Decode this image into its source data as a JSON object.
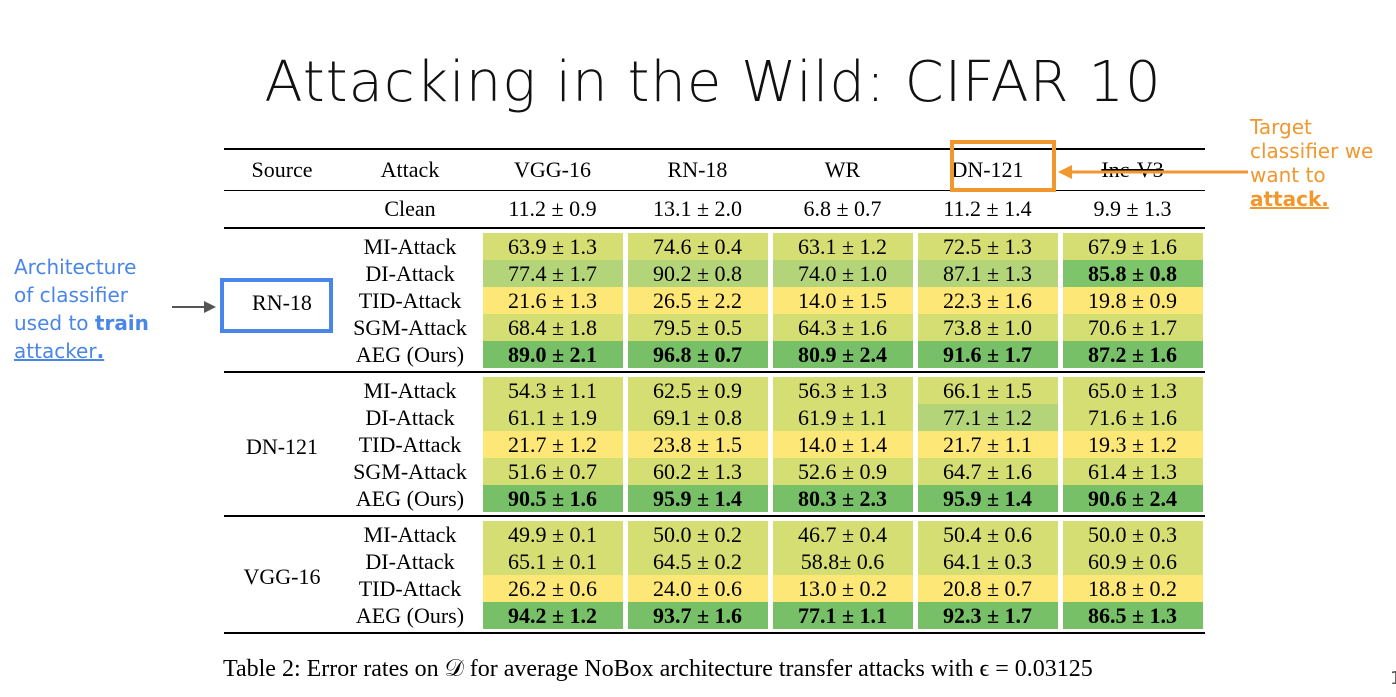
{
  "slide": {
    "title": "Attacking in the Wild: CIFAR 10",
    "page_number": "1"
  },
  "table": {
    "headers": [
      "Source",
      "Attack",
      "VGG-16",
      "RN-18",
      "WR",
      "DN-121",
      "Inc-V3"
    ],
    "clean": {
      "label": "Clean",
      "values": [
        "11.2 ± 0.9",
        "13.1 ± 2.0",
        "6.8 ± 0.7",
        "11.2 ± 1.4",
        "9.9 ± 1.3"
      ]
    },
    "groups": [
      {
        "source": "RN-18",
        "rows": [
          {
            "attack": "MI-Attack",
            "values": [
              "63.9 ± 1.3",
              "74.6 ± 0.4",
              "63.1 ± 1.2",
              "72.5 ± 1.3",
              "67.9 ± 1.6"
            ]
          },
          {
            "attack": "DI-Attack",
            "values": [
              "77.4 ± 1.7",
              "90.2 ± 0.8",
              "74.0 ± 1.0",
              "87.1 ± 1.3",
              "85.8 ± 0.8"
            ]
          },
          {
            "attack": "TID-Attack",
            "values": [
              "21.6 ± 1.3",
              "26.5 ± 2.2",
              "14.0 ± 1.5",
              "22.3 ± 1.6",
              "19.8 ± 0.9"
            ]
          },
          {
            "attack": "SGM-Attack",
            "values": [
              "68.4 ± 1.8",
              "79.5 ± 0.5",
              "64.3 ± 1.6",
              "73.8 ± 1.0",
              "70.6 ± 1.7"
            ]
          },
          {
            "attack": "AEG (Ours)",
            "values": [
              "89.0 ± 2.1",
              "96.8 ± 0.7",
              "80.9 ± 2.4",
              "91.6 ± 1.7",
              "87.2 ± 1.6"
            ]
          }
        ]
      },
      {
        "source": "DN-121",
        "rows": [
          {
            "attack": "MI-Attack",
            "values": [
              "54.3 ± 1.1",
              "62.5 ± 0.9",
              "56.3 ± 1.3",
              "66.1 ± 1.5",
              "65.0 ± 1.3"
            ]
          },
          {
            "attack": "DI-Attack",
            "values": [
              "61.1 ± 1.9",
              "69.1 ± 0.8",
              "61.9 ± 1.1",
              "77.1 ± 1.2",
              "71.6 ± 1.6"
            ]
          },
          {
            "attack": "TID-Attack",
            "values": [
              "21.7 ± 1.2",
              "23.8 ± 1.5",
              "14.0 ± 1.4",
              "21.7 ± 1.1",
              "19.3 ± 1.2"
            ]
          },
          {
            "attack": "SGM-Attack",
            "values": [
              "51.6 ± 0.7",
              "60.2 ± 1.3",
              "52.6 ± 0.9",
              "64.7 ± 1.6",
              "61.4 ± 1.3"
            ]
          },
          {
            "attack": "AEG (Ours)",
            "values": [
              "90.5 ± 1.6",
              "95.9 ± 1.4",
              "80.3 ± 2.3",
              "95.9 ± 1.4",
              "90.6 ± 2.4"
            ]
          }
        ]
      },
      {
        "source": "VGG-16",
        "rows": [
          {
            "attack": "MI-Attack",
            "values": [
              "49.9 ± 0.1",
              "50.0 ± 0.2",
              "46.7 ± 0.4",
              "50.4 ± 0.6",
              "50.0 ± 0.3"
            ]
          },
          {
            "attack": "DI-Attack",
            "values": [
              "65.1 ± 0.1",
              "64.5 ± 0.2",
              "58.8± 0.6",
              "64.1 ± 0.3",
              "60.9 ± 0.6"
            ]
          },
          {
            "attack": "TID-Attack",
            "values": [
              "26.2 ± 0.6",
              "24.0 ± 0.6",
              "13.0 ± 0.2",
              "20.8 ± 0.7",
              "18.8 ± 0.2"
            ]
          },
          {
            "attack": "AEG (Ours)",
            "values": [
              "94.2 ± 1.2",
              "93.7 ± 1.6",
              "77.1 ± 1.1",
              "92.3 ± 1.7",
              "86.5 ± 1.3"
            ]
          }
        ]
      }
    ],
    "caption": "Table 2: Error rates on 𝒟 for average NoBox architecture transfer attacks with ϵ = 0.03125"
  },
  "annotations": {
    "target": {
      "line1": "Target",
      "line2": "classifier we",
      "line3": "want to",
      "emphasis": "attack.",
      "color": "#f0972e"
    },
    "source": {
      "line1": "Architecture",
      "line2": "of classifier",
      "line3_prefix": "used to ",
      "line3_emphasis": "train",
      "line4_underlined": "attacker",
      "line4_dot": ".",
      "color": "#4a86e8"
    }
  }
}
